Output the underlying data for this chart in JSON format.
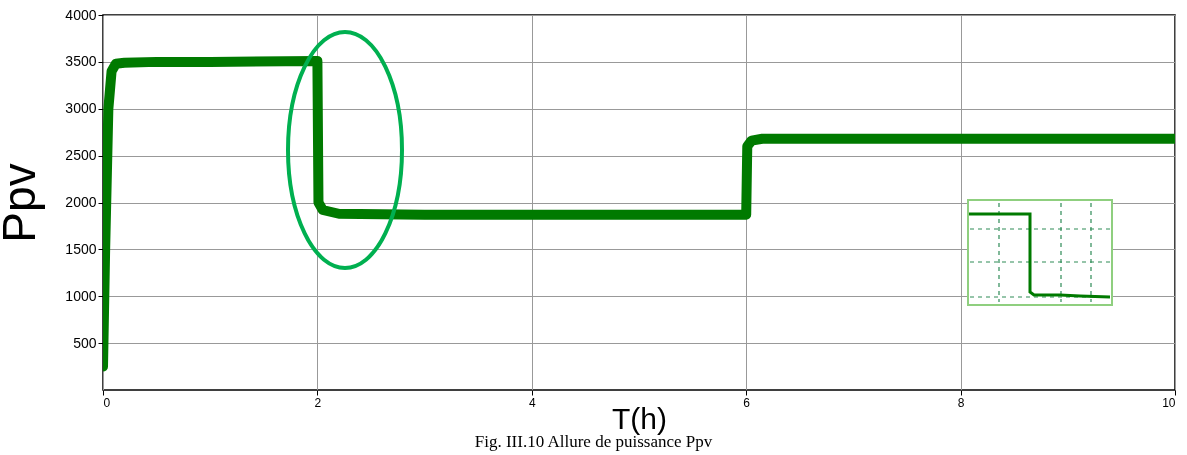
{
  "chart_data": {
    "type": "line",
    "xlabel": "T(h)",
    "ylabel": "Ppv",
    "annotations": [
      "Fig. III.10 Allure de puissance  Ppv"
    ],
    "x": [
      0,
      0.02,
      0.05,
      0.08,
      0.12,
      0.2,
      0.5,
      1,
      2,
      2.01,
      2.05,
      2.2,
      3,
      6,
      6.01,
      6.05,
      6.15,
      8,
      10
    ],
    "series": [
      {
        "color": "#007a00",
        "values": [
          250,
          1500,
          3000,
          3400,
          3480,
          3490,
          3500,
          3500,
          3510,
          2000,
          1920,
          1880,
          1870,
          1870,
          2600,
          2660,
          2680,
          2680,
          2680
        ]
      }
    ],
    "xlim": [
      0,
      10
    ],
    "xticks": [
      0,
      2,
      4,
      6,
      8,
      10
    ],
    "ylim": [
      0,
      4000
    ],
    "yticks": [
      500,
      1000,
      1500,
      2000,
      2500,
      3000,
      3500,
      4000
    ],
    "grid": true,
    "line_style": "solid"
  }
}
